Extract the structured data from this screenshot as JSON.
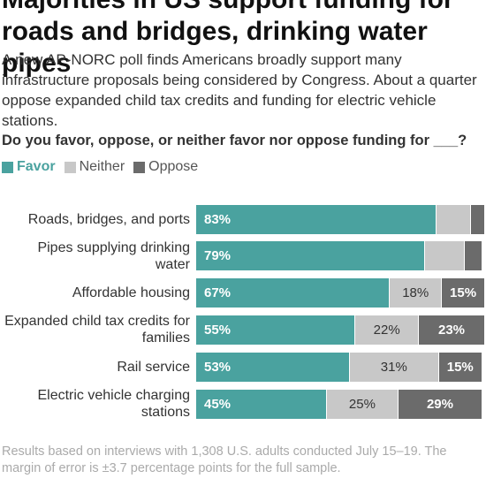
{
  "chart_data": {
    "type": "stacked-bar",
    "title": "Majorities in US support funding for roads and bridges, drinking water pipes",
    "subtitle": "A new AP-NORC poll finds Americans broadly support many infrastructure proposals being considered by Congress. About a quarter oppose expanded child tax credits and funding for electric vehicle stations.",
    "question": "Do you favor, oppose, or neither favor nor oppose funding for ___?",
    "categories": [
      "Roads, bridges, and ports",
      "Pipes supplying drinking water",
      "Affordable housing",
      "Expanded child tax credits for families",
      "Rail service",
      "Electric vehicle charging stations"
    ],
    "xlim": [
      0,
      100
    ],
    "series": [
      {
        "name": "Favor",
        "color": "#4aa29f",
        "values": [
          83,
          79,
          67,
          55,
          53,
          45
        ],
        "value_labels": [
          "83%",
          "79%",
          "67%",
          "55%",
          "53%",
          "45%"
        ]
      },
      {
        "name": "Neither",
        "color": "#c8c8c8",
        "values": [
          12,
          14,
          18,
          22,
          31,
          25
        ],
        "value_labels": [
          null,
          null,
          "18%",
          "22%",
          "31%",
          "25%"
        ]
      },
      {
        "name": "Oppose",
        "color": "#6b6b6b",
        "values": [
          5,
          6,
          15,
          23,
          15,
          29
        ],
        "value_labels": [
          null,
          null,
          "15%",
          "23%",
          "15%",
          "29%"
        ]
      }
    ],
    "note": "Results based on interviews with 1,308 U.S. adults conducted July 15–19. The margin of error is ±3.7 percentage points for the full sample."
  }
}
